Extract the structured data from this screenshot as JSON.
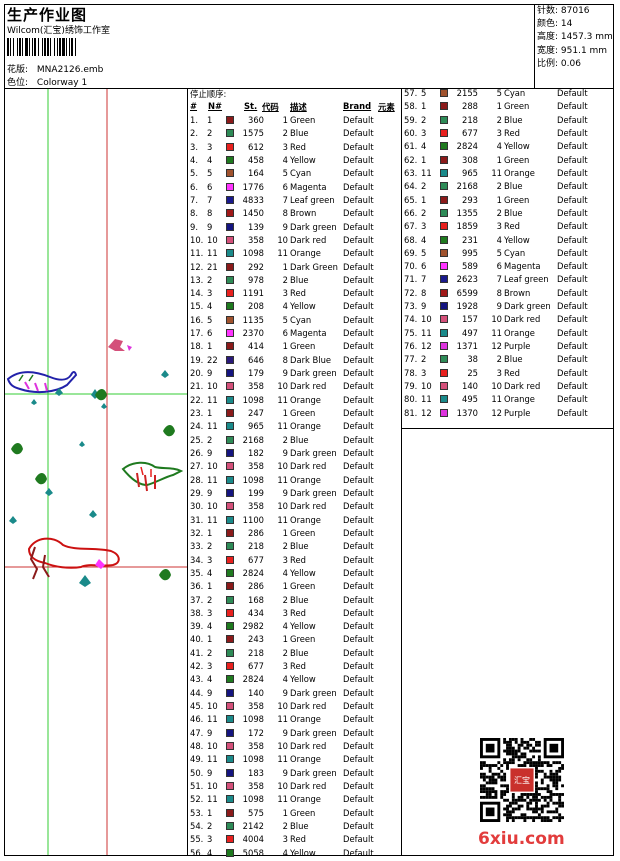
{
  "header": {
    "title": "生产作业图",
    "company": "Wilcom(汇宝)绣饰工作室",
    "pattern_label": "花版:",
    "pattern_name": "MNA2126.emb",
    "colorway_label": "色位:",
    "colorway_name": "Colorway 1"
  },
  "stats": [
    {
      "label": "针数:",
      "value": "87016"
    },
    {
      "label": "颜色:",
      "value": "14"
    },
    {
      "label": "高度:",
      "value": "1457.3 mm"
    },
    {
      "label": "宽度:",
      "value": "951.1 mm"
    },
    {
      "label": "比例:",
      "value": "0.06"
    }
  ],
  "table": {
    "stop_order_label": "停止顺序:",
    "headers": {
      "num": "#",
      "n": "N#",
      "st": "St.",
      "code": "代码",
      "desc": "描述",
      "brand": "Brand",
      "element": "元素"
    }
  },
  "colors": {
    "Green": "#8b1a1a",
    "Blue": "#2e8b57",
    "Red": "#e8201e",
    "Yellow": "#1f7a1f",
    "Cyan": "#a0522d",
    "Magenta": "#ff33ff",
    "Leaf green": "#1a1a8c",
    "Brown": "#a01818",
    "Dark green": "#141480",
    "Dark red": "#d4507a",
    "Orange": "#1a8a8a",
    "Purple": "#dd33dd",
    "Dark Green": "#8b1a1a",
    "Dark Blue": "#2a1a7a"
  },
  "rows_left": [
    {
      "num": "1.",
      "n": "1",
      "st": "360",
      "code": "1",
      "desc": "Green",
      "brand": "Default"
    },
    {
      "num": "2.",
      "n": "2",
      "st": "1575",
      "code": "2",
      "desc": "Blue",
      "brand": "Default"
    },
    {
      "num": "3.",
      "n": "3",
      "st": "612",
      "code": "3",
      "desc": "Red",
      "brand": "Default"
    },
    {
      "num": "4.",
      "n": "4",
      "st": "458",
      "code": "4",
      "desc": "Yellow",
      "brand": "Default"
    },
    {
      "num": "5.",
      "n": "5",
      "st": "164",
      "code": "5",
      "desc": "Cyan",
      "brand": "Default"
    },
    {
      "num": "6.",
      "n": "6",
      "st": "1776",
      "code": "6",
      "desc": "Magenta",
      "brand": "Default"
    },
    {
      "num": "7.",
      "n": "7",
      "st": "4833",
      "code": "7",
      "desc": "Leaf green",
      "brand": "Default"
    },
    {
      "num": "8.",
      "n": "8",
      "st": "1450",
      "code": "8",
      "desc": "Brown",
      "brand": "Default"
    },
    {
      "num": "9.",
      "n": "9",
      "st": "139",
      "code": "9",
      "desc": "Dark green",
      "brand": "Default"
    },
    {
      "num": "10.",
      "n": "10",
      "st": "358",
      "code": "10",
      "desc": "Dark red",
      "brand": "Default"
    },
    {
      "num": "11.",
      "n": "11",
      "st": "1098",
      "code": "11",
      "desc": "Orange",
      "brand": "Default"
    },
    {
      "num": "12.",
      "n": "21",
      "st": "292",
      "code": "1",
      "desc": "Dark Green",
      "brand": "Default"
    },
    {
      "num": "13.",
      "n": "2",
      "st": "978",
      "code": "2",
      "desc": "Blue",
      "brand": "Default"
    },
    {
      "num": "14.",
      "n": "3",
      "st": "1191",
      "code": "3",
      "desc": "Red",
      "brand": "Default"
    },
    {
      "num": "15.",
      "n": "4",
      "st": "208",
      "code": "4",
      "desc": "Yellow",
      "brand": "Default"
    },
    {
      "num": "16.",
      "n": "5",
      "st": "1135",
      "code": "5",
      "desc": "Cyan",
      "brand": "Default"
    },
    {
      "num": "17.",
      "n": "6",
      "st": "2370",
      "code": "6",
      "desc": "Magenta",
      "brand": "Default"
    },
    {
      "num": "18.",
      "n": "1",
      "st": "414",
      "code": "1",
      "desc": "Green",
      "brand": "Default"
    },
    {
      "num": "19.",
      "n": "22",
      "st": "646",
      "code": "8",
      "desc": "Dark Blue",
      "brand": "Default"
    },
    {
      "num": "20.",
      "n": "9",
      "st": "179",
      "code": "9",
      "desc": "Dark green",
      "brand": "Default"
    },
    {
      "num": "21.",
      "n": "10",
      "st": "358",
      "code": "10",
      "desc": "Dark red",
      "brand": "Default"
    },
    {
      "num": "22.",
      "n": "11",
      "st": "1098",
      "code": "11",
      "desc": "Orange",
      "brand": "Default"
    },
    {
      "num": "23.",
      "n": "1",
      "st": "247",
      "code": "1",
      "desc": "Green",
      "brand": "Default"
    },
    {
      "num": "24.",
      "n": "11",
      "st": "965",
      "code": "11",
      "desc": "Orange",
      "brand": "Default"
    },
    {
      "num": "25.",
      "n": "2",
      "st": "2168",
      "code": "2",
      "desc": "Blue",
      "brand": "Default"
    },
    {
      "num": "26.",
      "n": "9",
      "st": "182",
      "code": "9",
      "desc": "Dark green",
      "brand": "Default"
    },
    {
      "num": "27.",
      "n": "10",
      "st": "358",
      "code": "10",
      "desc": "Dark red",
      "brand": "Default"
    },
    {
      "num": "28.",
      "n": "11",
      "st": "1098",
      "code": "11",
      "desc": "Orange",
      "brand": "Default"
    },
    {
      "num": "29.",
      "n": "9",
      "st": "199",
      "code": "9",
      "desc": "Dark green",
      "brand": "Default"
    },
    {
      "num": "30.",
      "n": "10",
      "st": "358",
      "code": "10",
      "desc": "Dark red",
      "brand": "Default"
    },
    {
      "num": "31.",
      "n": "11",
      "st": "1100",
      "code": "11",
      "desc": "Orange",
      "brand": "Default"
    },
    {
      "num": "32.",
      "n": "1",
      "st": "286",
      "code": "1",
      "desc": "Green",
      "brand": "Default"
    },
    {
      "num": "33.",
      "n": "2",
      "st": "218",
      "code": "2",
      "desc": "Blue",
      "brand": "Default"
    },
    {
      "num": "34.",
      "n": "3",
      "st": "677",
      "code": "3",
      "desc": "Red",
      "brand": "Default"
    },
    {
      "num": "35.",
      "n": "4",
      "st": "2824",
      "code": "4",
      "desc": "Yellow",
      "brand": "Default"
    },
    {
      "num": "36.",
      "n": "1",
      "st": "286",
      "code": "1",
      "desc": "Green",
      "brand": "Default"
    },
    {
      "num": "37.",
      "n": "2",
      "st": "168",
      "code": "2",
      "desc": "Blue",
      "brand": "Default"
    },
    {
      "num": "38.",
      "n": "3",
      "st": "434",
      "code": "3",
      "desc": "Red",
      "brand": "Default"
    },
    {
      "num": "39.",
      "n": "4",
      "st": "2982",
      "code": "4",
      "desc": "Yellow",
      "brand": "Default"
    },
    {
      "num": "40.",
      "n": "1",
      "st": "243",
      "code": "1",
      "desc": "Green",
      "brand": "Default"
    },
    {
      "num": "41.",
      "n": "2",
      "st": "218",
      "code": "2",
      "desc": "Blue",
      "brand": "Default"
    },
    {
      "num": "42.",
      "n": "3",
      "st": "677",
      "code": "3",
      "desc": "Red",
      "brand": "Default"
    },
    {
      "num": "43.",
      "n": "4",
      "st": "2824",
      "code": "4",
      "desc": "Yellow",
      "brand": "Default"
    },
    {
      "num": "44.",
      "n": "9",
      "st": "140",
      "code": "9",
      "desc": "Dark green",
      "brand": "Default"
    },
    {
      "num": "45.",
      "n": "10",
      "st": "358",
      "code": "10",
      "desc": "Dark red",
      "brand": "Default"
    },
    {
      "num": "46.",
      "n": "11",
      "st": "1098",
      "code": "11",
      "desc": "Orange",
      "brand": "Default"
    },
    {
      "num": "47.",
      "n": "9",
      "st": "172",
      "code": "9",
      "desc": "Dark green",
      "brand": "Default"
    },
    {
      "num": "48.",
      "n": "10",
      "st": "358",
      "code": "10",
      "desc": "Dark red",
      "brand": "Default"
    },
    {
      "num": "49.",
      "n": "11",
      "st": "1098",
      "code": "11",
      "desc": "Orange",
      "brand": "Default"
    },
    {
      "num": "50.",
      "n": "9",
      "st": "183",
      "code": "9",
      "desc": "Dark green",
      "brand": "Default"
    },
    {
      "num": "51.",
      "n": "10",
      "st": "358",
      "code": "10",
      "desc": "Dark red",
      "brand": "Default"
    },
    {
      "num": "52.",
      "n": "11",
      "st": "1098",
      "code": "11",
      "desc": "Orange",
      "brand": "Default"
    },
    {
      "num": "53.",
      "n": "1",
      "st": "575",
      "code": "1",
      "desc": "Green",
      "brand": "Default"
    },
    {
      "num": "54.",
      "n": "2",
      "st": "2142",
      "code": "2",
      "desc": "Blue",
      "brand": "Default"
    },
    {
      "num": "55.",
      "n": "3",
      "st": "4004",
      "code": "3",
      "desc": "Red",
      "brand": "Default"
    },
    {
      "num": "56.",
      "n": "4",
      "st": "5058",
      "code": "4",
      "desc": "Yellow",
      "brand": "Default"
    }
  ],
  "rows_right": [
    {
      "num": "57.",
      "n": "5",
      "st": "2155",
      "code": "5",
      "desc": "Cyan",
      "brand": "Default"
    },
    {
      "num": "58.",
      "n": "1",
      "st": "288",
      "code": "1",
      "desc": "Green",
      "brand": "Default"
    },
    {
      "num": "59.",
      "n": "2",
      "st": "218",
      "code": "2",
      "desc": "Blue",
      "brand": "Default"
    },
    {
      "num": "60.",
      "n": "3",
      "st": "677",
      "code": "3",
      "desc": "Red",
      "brand": "Default"
    },
    {
      "num": "61.",
      "n": "4",
      "st": "2824",
      "code": "4",
      "desc": "Yellow",
      "brand": "Default"
    },
    {
      "num": "62.",
      "n": "1",
      "st": "308",
      "code": "1",
      "desc": "Green",
      "brand": "Default"
    },
    {
      "num": "63.",
      "n": "11",
      "st": "965",
      "code": "11",
      "desc": "Orange",
      "brand": "Default"
    },
    {
      "num": "64.",
      "n": "2",
      "st": "2168",
      "code": "2",
      "desc": "Blue",
      "brand": "Default"
    },
    {
      "num": "65.",
      "n": "1",
      "st": "293",
      "code": "1",
      "desc": "Green",
      "brand": "Default"
    },
    {
      "num": "66.",
      "n": "2",
      "st": "1355",
      "code": "2",
      "desc": "Blue",
      "brand": "Default"
    },
    {
      "num": "67.",
      "n": "3",
      "st": "1859",
      "code": "3",
      "desc": "Red",
      "brand": "Default"
    },
    {
      "num": "68.",
      "n": "4",
      "st": "231",
      "code": "4",
      "desc": "Yellow",
      "brand": "Default"
    },
    {
      "num": "69.",
      "n": "5",
      "st": "995",
      "code": "5",
      "desc": "Cyan",
      "brand": "Default"
    },
    {
      "num": "70.",
      "n": "6",
      "st": "589",
      "code": "6",
      "desc": "Magenta",
      "brand": "Default"
    },
    {
      "num": "71.",
      "n": "7",
      "st": "2623",
      "code": "7",
      "desc": "Leaf green",
      "brand": "Default"
    },
    {
      "num": "72.",
      "n": "8",
      "st": "6599",
      "code": "8",
      "desc": "Brown",
      "brand": "Default"
    },
    {
      "num": "73.",
      "n": "9",
      "st": "1928",
      "code": "9",
      "desc": "Dark green",
      "brand": "Default"
    },
    {
      "num": "74.",
      "n": "10",
      "st": "157",
      "code": "10",
      "desc": "Dark red",
      "brand": "Default"
    },
    {
      "num": "75.",
      "n": "11",
      "st": "497",
      "code": "11",
      "desc": "Orange",
      "brand": "Default"
    },
    {
      "num": "76.",
      "n": "12",
      "st": "1371",
      "code": "12",
      "desc": "Purple",
      "brand": "Default"
    },
    {
      "num": "77.",
      "n": "2",
      "st": "38",
      "code": "2",
      "desc": "Blue",
      "brand": "Default"
    },
    {
      "num": "78.",
      "n": "3",
      "st": "25",
      "code": "3",
      "desc": "Red",
      "brand": "Default"
    },
    {
      "num": "79.",
      "n": "10",
      "st": "140",
      "code": "10",
      "desc": "Dark red",
      "brand": "Default"
    },
    {
      "num": "80.",
      "n": "11",
      "st": "495",
      "code": "11",
      "desc": "Orange",
      "brand": "Default"
    },
    {
      "num": "81.",
      "n": "12",
      "st": "1370",
      "code": "12",
      "desc": "Purple",
      "brand": "Default"
    }
  ],
  "footer": {
    "logo_text": "6xiu.com",
    "seal_text": "汇宝"
  }
}
